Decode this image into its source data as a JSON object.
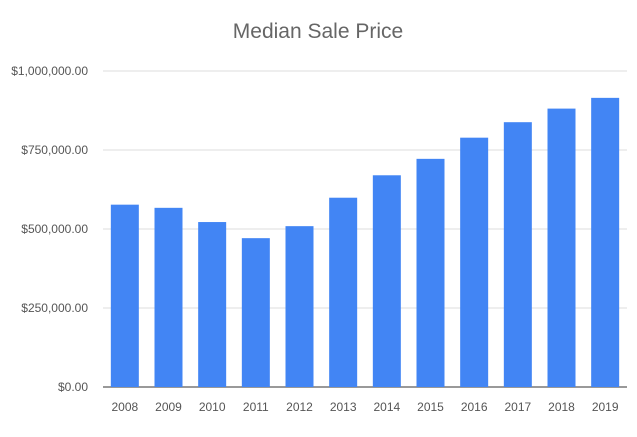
{
  "chart_data": {
    "type": "bar",
    "title": "Median Sale Price",
    "xlabel": "",
    "ylabel": "",
    "categories": [
      "2008",
      "2009",
      "2010",
      "2011",
      "2012",
      "2013",
      "2014",
      "2015",
      "2016",
      "2017",
      "2018",
      "2019"
    ],
    "values": [
      577000,
      567000,
      522000,
      471000,
      509000,
      599000,
      670000,
      722000,
      789000,
      838000,
      881000,
      915000
    ],
    "ylim": [
      0,
      1000000
    ],
    "y_ticks": [
      {
        "value": 0,
        "label": "$0.00"
      },
      {
        "value": 250000,
        "label": "$250,000.00"
      },
      {
        "value": 500000,
        "label": "$500,000.00"
      },
      {
        "value": 750000,
        "label": "$750,000.00"
      },
      {
        "value": 1000000,
        "label": "$1,000,000.00"
      }
    ],
    "bar_color": "#4285f4",
    "grid": true,
    "legend": "none"
  }
}
